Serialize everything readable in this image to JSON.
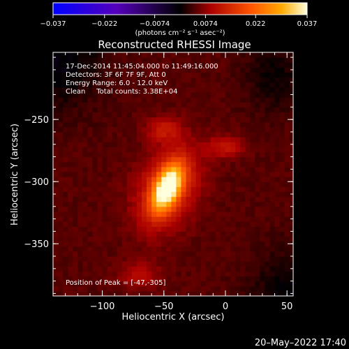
{
  "chart_data": {
    "type": "heatmap",
    "title": "Reconstructed RHESSI Image",
    "xlabel": "Heliocentric X (arcsec)",
    "ylabel": "Heliocentric Y (arcsec)",
    "xlim": [
      -140,
      55
    ],
    "ylim": [
      -392,
      -196
    ],
    "x_ticks": [
      -100,
      -50,
      0,
      50
    ],
    "y_ticks": [
      -250,
      -300,
      -350
    ],
    "x_tick_labels": [
      "−100",
      "−50",
      "0",
      "50"
    ],
    "y_tick_labels": [
      "−250",
      "−300",
      "−350"
    ],
    "colorbar": {
      "min": -0.037,
      "max": 0.037,
      "ticks": [
        -0.037,
        -0.022,
        -0.0074,
        0.0074,
        0.022,
        0.037
      ],
      "tick_labels": [
        "−0.037",
        "−0.022",
        "−0.0074",
        "0.0074",
        "0.022",
        "0.037"
      ],
      "unit_label": "(photons cm⁻² s⁻¹ asec⁻²)"
    },
    "info_lines": [
      "17-Dec-2014 11:45:04.000 to 11:49:16.000",
      "Detectors: 3F 6F 7F 9F, Att 0",
      "Energy Range: 6.0 - 12.0 keV",
      "Clean     Total counts: 3.38E+04"
    ],
    "peak_label": "Position of Peak = [-47,-305]",
    "peak": {
      "x": -47,
      "y": -305,
      "value": 0.037
    },
    "sources": [
      {
        "x": -47,
        "y": -305,
        "sx": 7,
        "sy": 14,
        "rot": -25,
        "amp": 0.03
      },
      {
        "x": -47,
        "y": -305,
        "sx": 16,
        "sy": 24,
        "rot": -25,
        "amp": 0.012
      },
      {
        "x": -50,
        "y": -258,
        "sx": 10,
        "sy": 7,
        "rot": 0,
        "amp": 0.007
      },
      {
        "x": 0,
        "y": -272,
        "sx": 10,
        "sy": 6,
        "rot": 0,
        "amp": 0.007
      },
      {
        "x": -70,
        "y": -375,
        "sx": 12,
        "sy": 8,
        "rot": 0,
        "amp": 0.005
      }
    ],
    "background": 0.0045,
    "colormap": [
      "#0000ff",
      "#6600cc",
      "#000000",
      "#aa0000",
      "#ff5500",
      "#ffaa00",
      "#ffffdd"
    ]
  },
  "timestamp": "20–May–2022 17:40"
}
